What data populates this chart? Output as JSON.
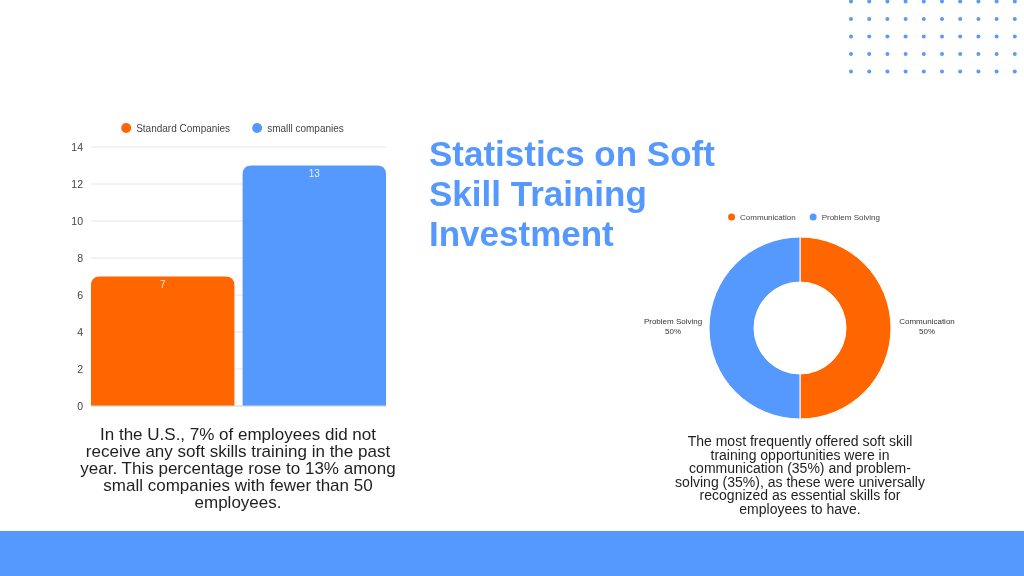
{
  "chart_data": [
    {
      "type": "bar",
      "categories": [
        null
      ],
      "series": [
        {
          "name": "Standard Companies",
          "color": "#ff6600",
          "values": [
            7
          ]
        },
        {
          "name": "smalll companies",
          "color": "#5599ff",
          "values": [
            13
          ]
        }
      ],
      "ylim": [
        0,
        14
      ],
      "yticks": [
        0,
        2,
        4,
        6,
        8,
        10,
        12,
        14
      ],
      "grid": "y",
      "legend": "top",
      "data_labels": true,
      "annotations": [
        "In the U.S., 7% of employees did not receive any soft skills training in the past year. This percentage rose to 13% among small companies with fewer than 50 employees."
      ]
    },
    {
      "type": "donut",
      "title": "Statistics on Soft Skill Training Investment",
      "categories": [
        "Communication",
        "Problem Solving"
      ],
      "values": [
        50,
        50
      ],
      "colors": [
        "#ff6600",
        "#5599ff"
      ],
      "value_labels": [
        "50%",
        "50%"
      ],
      "legend": "top",
      "annotations": [
        "The most frequently offered soft skill training opportunities were in communication (35%) and problem-solving (35%), as these were universally recognized as essential skills for employees to have."
      ]
    }
  ]
}
